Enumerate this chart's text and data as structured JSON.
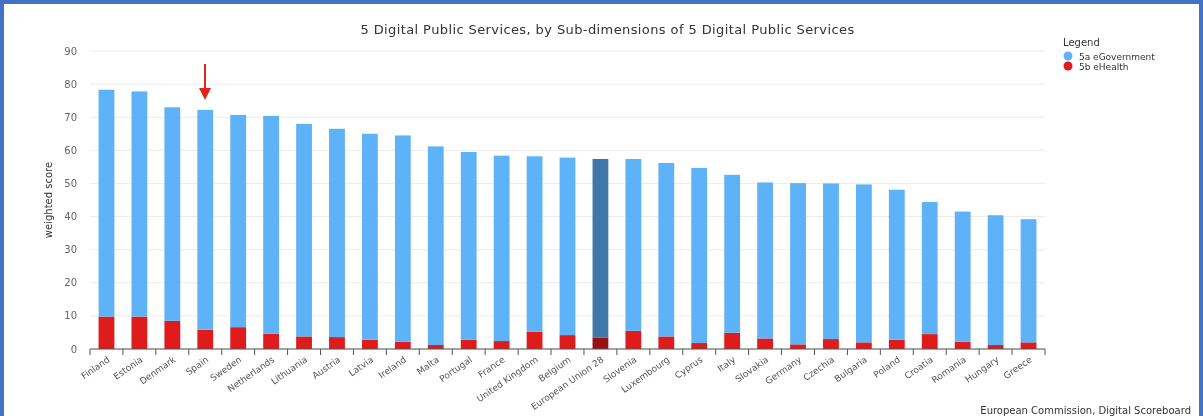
{
  "chart_data": {
    "type": "bar",
    "title": "5 Digital Public Services, by Sub-dimensions of 5 Digital Public Services",
    "ylabel": "weighted score",
    "legend_title": "Legend",
    "annotations": [
      "European Commission, Digital Scoreboard"
    ],
    "categories": [
      "Finland",
      "Estonia",
      "Denmark",
      "Spain",
      "Sweden",
      "Netherlands",
      "Lithuania",
      "Austria",
      "Latvia",
      "Ireland",
      "Malta",
      "Portugal",
      "France",
      "United Kingdom",
      "Belgium",
      "European Union 28",
      "Slovenia",
      "Luxembourg",
      "Cyprus",
      "Italy",
      "Slovakia",
      "Germany",
      "Czechia",
      "Bulgaria",
      "Poland",
      "Croatia",
      "Romania",
      "Hungary",
      "Greece"
    ],
    "stacked": true,
    "series": [
      {
        "name": "5b eHealth",
        "color": "#e01b1b",
        "colors": [
          "#e01b1b",
          "#e01b1b",
          "#e01b1b",
          "#e01b1b",
          "#e01b1b",
          "#e01b1b",
          "#e01b1b",
          "#e01b1b",
          "#e01b1b",
          "#e01b1b",
          "#e01b1b",
          "#e01b1b",
          "#e01b1b",
          "#e01b1b",
          "#e01b1b",
          "#9b1111",
          "#e01b1b",
          "#e01b1b",
          "#e01b1b",
          "#e01b1b",
          "#e01b1b",
          "#e01b1b",
          "#e01b1b",
          "#e01b1b",
          "#e01b1b",
          "#e01b1b",
          "#e01b1b",
          "#e01b1b",
          "#e01b1b"
        ],
        "values": [
          9.8,
          9.8,
          8.5,
          5.8,
          6.6,
          4.6,
          3.8,
          3.6,
          2.8,
          2.2,
          1.2,
          2.8,
          2.4,
          5.2,
          4.2,
          3.5,
          5.5,
          3.8,
          1.8,
          4.9,
          3.2,
          1.4,
          3.0,
          2.0,
          2.8,
          4.5,
          2.2,
          1.2,
          2.0
        ]
      },
      {
        "name": "5a eGovernment",
        "color": "#5eb2f7",
        "colors": [
          "#5eb2f7",
          "#5eb2f7",
          "#5eb2f7",
          "#5eb2f7",
          "#5eb2f7",
          "#5eb2f7",
          "#5eb2f7",
          "#5eb2f7",
          "#5eb2f7",
          "#5eb2f7",
          "#5eb2f7",
          "#5eb2f7",
          "#5eb2f7",
          "#5eb2f7",
          "#5eb2f7",
          "#3f78a8",
          "#5eb2f7",
          "#5eb2f7",
          "#5eb2f7",
          "#5eb2f7",
          "#5eb2f7",
          "#5eb2f7",
          "#5eb2f7",
          "#5eb2f7",
          "#5eb2f7",
          "#5eb2f7",
          "#5eb2f7",
          "#5eb2f7",
          "#5eb2f7"
        ],
        "values": [
          68.5,
          68.0,
          64.5,
          66.4,
          64.1,
          65.8,
          64.2,
          62.9,
          62.2,
          62.3,
          60.0,
          56.7,
          56.0,
          53.0,
          53.6,
          53.9,
          51.9,
          52.4,
          52.9,
          47.7,
          47.1,
          48.7,
          47.0,
          47.7,
          45.3,
          39.9,
          39.3,
          39.2,
          37.2
        ]
      }
    ],
    "ylim": [
      0,
      90
    ],
    "yticks": [
      0,
      10,
      20,
      30,
      40,
      50,
      60,
      70,
      80,
      90
    ],
    "grid": "y",
    "legend": "top right"
  }
}
